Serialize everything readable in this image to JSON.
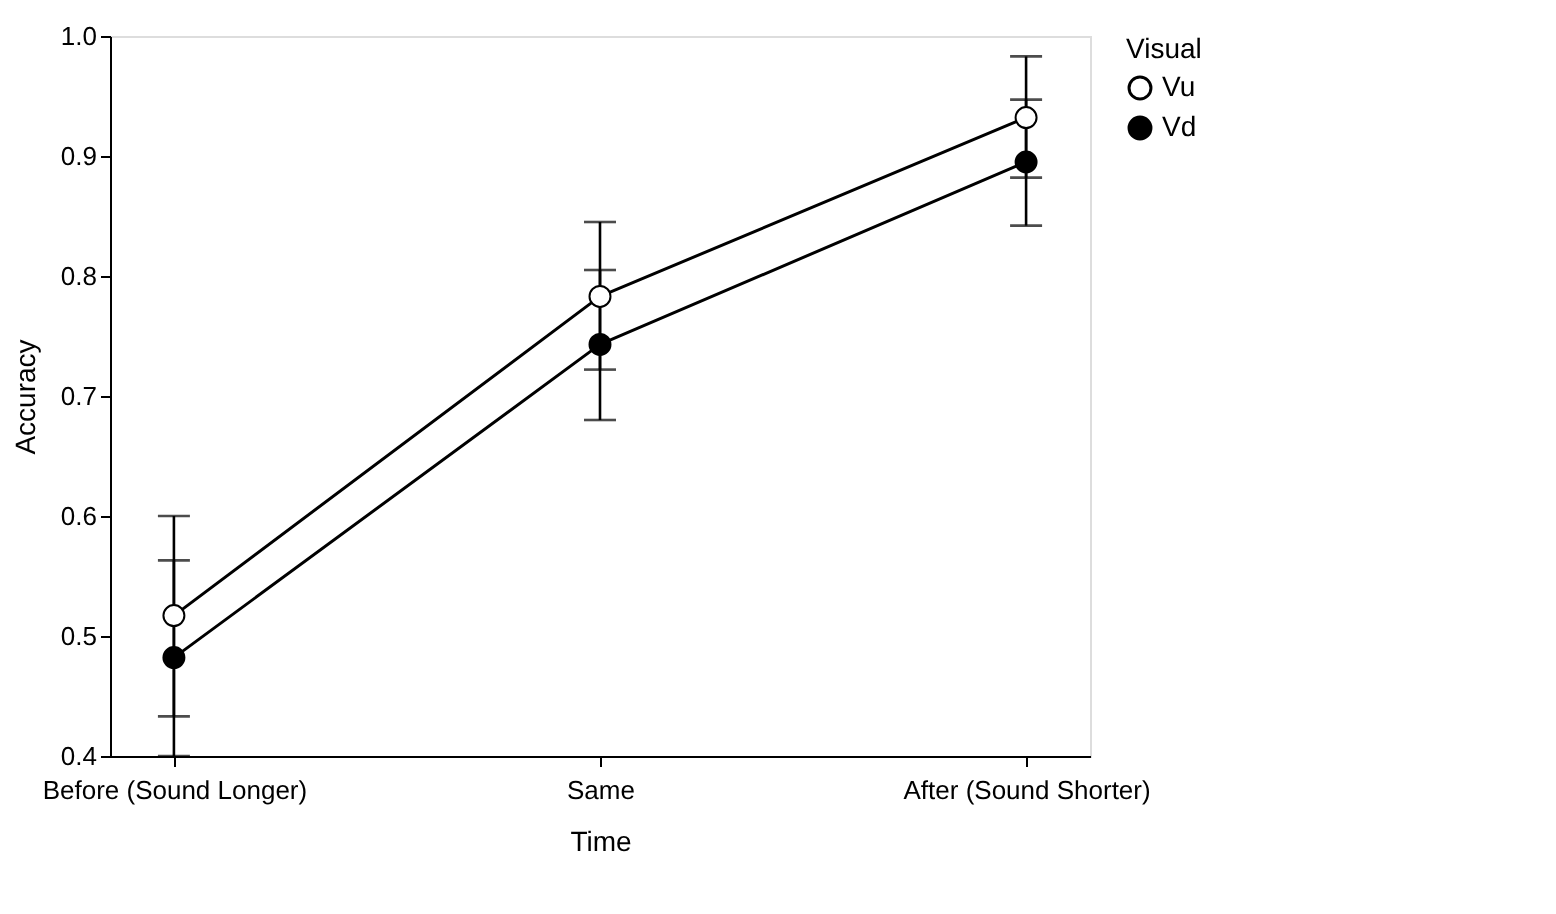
{
  "chart_data": {
    "type": "line",
    "xlabel": "Time",
    "ylabel": "Accuracy",
    "legend_title": "Visual",
    "categories": [
      "Before (Sound Longer)",
      "Same",
      "After (Sound Shorter)"
    ],
    "series": [
      {
        "name": "Vu",
        "color": "#ffffff",
        "values": [
          0.517,
          0.783,
          0.932
        ],
        "errors": [
          [
            0.433,
            0.6
          ],
          [
            0.722,
            0.845
          ],
          [
            0.882,
            0.983
          ]
        ]
      },
      {
        "name": "Vd",
        "color": "#000000",
        "values": [
          0.482,
          0.743,
          0.895
        ],
        "errors": [
          [
            0.4,
            0.563
          ],
          [
            0.68,
            0.805
          ],
          [
            0.842,
            0.947
          ]
        ]
      }
    ],
    "ylim": [
      0.4,
      1.0
    ],
    "yticks": [
      {
        "value": 0.4,
        "label": "0.4"
      },
      {
        "value": 0.5,
        "label": "0.5"
      },
      {
        "value": 0.6,
        "label": "0.6"
      },
      {
        "value": 0.7,
        "label": "0.7"
      },
      {
        "value": 0.8,
        "label": "0.8"
      },
      {
        "value": 0.9,
        "label": "0.9"
      },
      {
        "value": 1,
        "label": "1.0"
      }
    ],
    "grid": false,
    "legend": "top right",
    "marker": "circle",
    "line_style": "solid"
  }
}
